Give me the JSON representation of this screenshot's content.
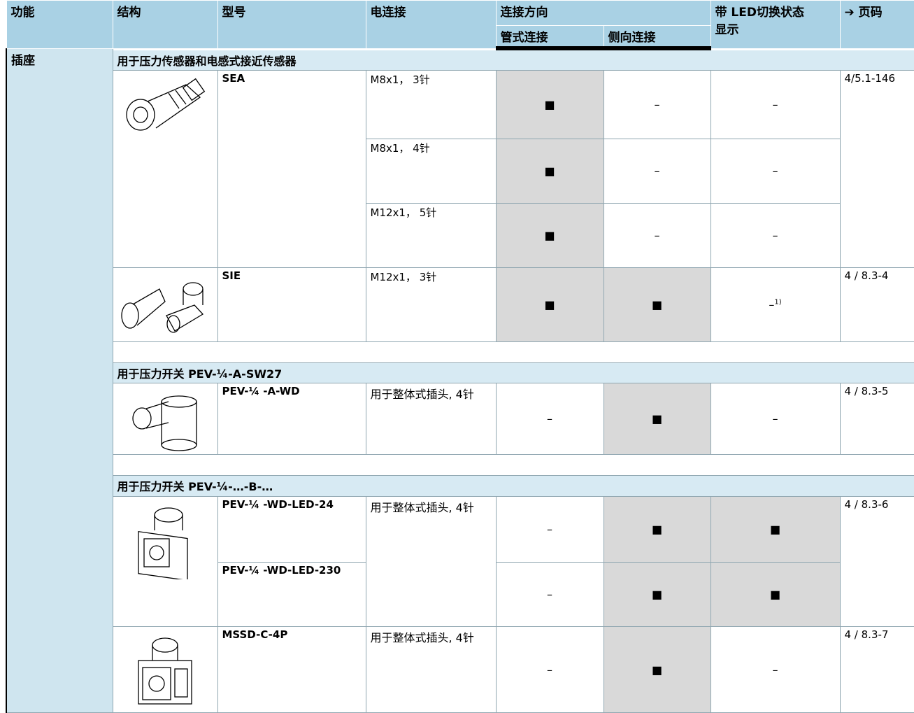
{
  "header": {
    "function": "功能",
    "structure": "结构",
    "model": "型号",
    "electrical": "电连接",
    "direction": "连接方向",
    "tube": "管式连接",
    "side": "侧向连接",
    "led": "带 LED切换状态显示",
    "page": "➔ 页码"
  },
  "section": {
    "function": "插座",
    "groups": [
      {
        "title": "用于压力传感器和电感式接近传感器",
        "items": [
          {
            "model": "SEA",
            "page": "4/5.1-146",
            "rows": [
              {
                "electrical": "M8x1， 3针",
                "tube": "■",
                "side": "–",
                "led": "–"
              },
              {
                "electrical": "M8x1， 4针",
                "tube": "■",
                "side": "–",
                "led": "–"
              },
              {
                "electrical": "M12x1， 5针",
                "tube": "■",
                "side": "–",
                "led": "–"
              }
            ]
          },
          {
            "model": "SIE",
            "page": "4 / 8.3-4",
            "rows": [
              {
                "electrical": "M12x1， 3针",
                "tube": "■",
                "side": "■",
                "led": "–",
                "led_note": "1)"
              }
            ]
          }
        ]
      },
      {
        "title": "用于压力开关 PEV-¼-A-SW27",
        "items": [
          {
            "model": "PEV-¼ -A-WD",
            "page": "4 / 8.3-5",
            "rows": [
              {
                "electrical": "用于整体式插头, 4针",
                "tube": "–",
                "side": "■",
                "led": "–"
              }
            ]
          }
        ]
      },
      {
        "title": "用于压力开关  PEV-¼-…-B-…",
        "items": [
          {
            "models": [
              "PEV-¼ -WD-LED-24",
              "PEV-¼ -WD-LED-230"
            ],
            "electrical": "用于整体式插头, 4针",
            "page": "4 / 8.3-6",
            "rows": [
              {
                "tube": "–",
                "side": "■",
                "led": "■"
              },
              {
                "tube": "–",
                "side": "■",
                "led": "■"
              }
            ]
          },
          {
            "model": "MSSD-C-4P",
            "page": "4 / 8.3-7",
            "rows": [
              {
                "electrical": "用于整体式插头, 4针",
                "tube": "–",
                "side": "■",
                "led": "–"
              }
            ]
          }
        ]
      }
    ]
  }
}
